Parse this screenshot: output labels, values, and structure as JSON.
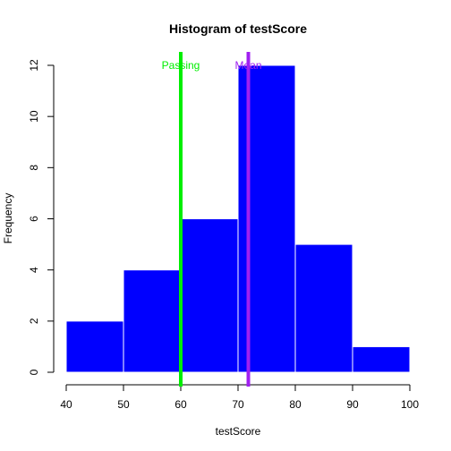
{
  "chart_data": {
    "type": "bar",
    "title": "Histogram of testScore",
    "xlabel": "testScore",
    "ylabel": "Frequency",
    "xlim": [
      40,
      100
    ],
    "ylim": [
      0,
      12
    ],
    "x_ticks": [
      "40",
      "50",
      "60",
      "70",
      "80",
      "90",
      "100"
    ],
    "y_ticks": [
      "0",
      "2",
      "4",
      "6",
      "8",
      "10",
      "12"
    ],
    "bins": [
      {
        "from": 40,
        "to": 50,
        "count": 2
      },
      {
        "from": 50,
        "to": 60,
        "count": 4
      },
      {
        "from": 60,
        "to": 70,
        "count": 6
      },
      {
        "from": 70,
        "to": 80,
        "count": 12
      },
      {
        "from": 80,
        "to": 90,
        "count": 5
      },
      {
        "from": 90,
        "to": 100,
        "count": 1
      }
    ],
    "bar_color": "#0000ff",
    "bar_border_color": "#ffffff",
    "grid": false,
    "reference_lines": [
      {
        "label": "Passing",
        "x": 60,
        "color": "#00ee00"
      },
      {
        "label": "Mean",
        "x": 71.8,
        "color": "#a020f0"
      }
    ]
  }
}
